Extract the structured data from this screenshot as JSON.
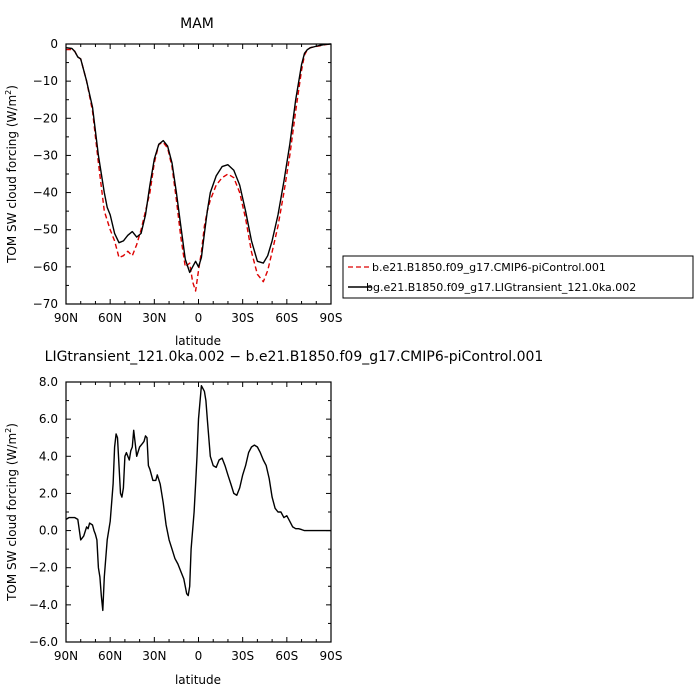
{
  "chart_data": [
    {
      "type": "line",
      "title": "MAM",
      "xlabel": "latitude",
      "ylabel_main": "TOM SW cloud forcing (W/m",
      "ylabel_sup": "2",
      "ylabel_close": ")",
      "xlim": [
        90,
        -90
      ],
      "ylim": [
        -70,
        0
      ],
      "xticks": [
        90,
        60,
        30,
        0,
        -30,
        -60,
        -90
      ],
      "xtick_labels": [
        "90N",
        "60N",
        "30N",
        "0",
        "30S",
        "60S",
        "90S"
      ],
      "yticks": [
        0,
        -10,
        -20,
        -30,
        -40,
        -50,
        -60,
        -70
      ],
      "ytick_labels": [
        "0",
        "−10",
        "−20",
        "−30",
        "−40",
        "−50",
        "−60",
        "−70"
      ],
      "legend": "right",
      "series": [
        {
          "name": "b.e21.B1850.f09_g17.CMIP6-piControl.001",
          "color": "#dd0000",
          "dash": "dashed",
          "x": [
            90,
            86,
            84,
            82,
            80,
            76,
            72,
            68,
            64,
            60,
            57,
            54,
            51,
            48,
            45,
            42,
            39,
            36,
            33,
            30,
            27,
            24,
            21,
            18,
            15,
            12,
            9,
            6,
            4,
            2,
            0,
            -2,
            -4,
            -6,
            -8,
            -12,
            -16,
            -20,
            -24,
            -28,
            -32,
            -36,
            -40,
            -44,
            -47,
            -50,
            -54,
            -58,
            -62,
            -66,
            -70,
            -72,
            -74,
            -76,
            -78,
            -82,
            -86,
            -90
          ],
          "y": [
            -1.5,
            -1.5,
            -2.0,
            -3.5,
            -4.0,
            -10.0,
            -18.0,
            -32.0,
            -45.0,
            -50.0,
            -53.0,
            -57.5,
            -57.0,
            -55.8,
            -57.0,
            -54.0,
            -50.0,
            -45.0,
            -40.0,
            -32.0,
            -27.0,
            -26.5,
            -28.0,
            -33.0,
            -42.0,
            -52.0,
            -60.0,
            -59.0,
            -64.0,
            -66.5,
            -61.0,
            -56.0,
            -49.0,
            -45.0,
            -42.0,
            -38.0,
            -36.0,
            -35.0,
            -36.0,
            -40.0,
            -47.0,
            -56.0,
            -62.0,
            -64.0,
            -61.0,
            -56.0,
            -49.0,
            -40.0,
            -30.0,
            -18.0,
            -7.0,
            -3.0,
            -1.5,
            -1.0,
            -0.8,
            -0.5,
            -0.2,
            0.0
          ]
        },
        {
          "name": "bg.e21.B1850.f09_g17.LIGtransient_121.0ka.002",
          "color": "#000000",
          "dash": "solid",
          "x": [
            90,
            86,
            84,
            82,
            80,
            76,
            72,
            68,
            64,
            62,
            60,
            57,
            54,
            51,
            48,
            45,
            42,
            39,
            36,
            33,
            30,
            27,
            24,
            21,
            18,
            15,
            12,
            9,
            6,
            4,
            2,
            0,
            -2,
            -4,
            -6,
            -8,
            -12,
            -16,
            -20,
            -24,
            -28,
            -32,
            -36,
            -40,
            -44,
            -47,
            -50,
            -54,
            -58,
            -62,
            -66,
            -70,
            -72,
            -74,
            -76,
            -78,
            -82,
            -86,
            -90
          ],
          "y": [
            -1.0,
            -1.2,
            -2.0,
            -3.5,
            -4.0,
            -10.0,
            -17.0,
            -30.0,
            -40.0,
            -44.0,
            -46.0,
            -51.0,
            -53.5,
            -53.0,
            -51.5,
            -50.5,
            -52.0,
            -51.0,
            -46.0,
            -38.0,
            -31.0,
            -27.0,
            -26.0,
            -27.5,
            -32.0,
            -40.0,
            -49.0,
            -58.0,
            -61.5,
            -60.0,
            -58.5,
            -60.0,
            -57.5,
            -51.0,
            -45.0,
            -40.0,
            -35.5,
            -33.0,
            -32.5,
            -34.0,
            -38.0,
            -45.0,
            -53.0,
            -58.5,
            -59.0,
            -57.0,
            -53.0,
            -46.0,
            -37.0,
            -27.0,
            -15.0,
            -5.5,
            -2.5,
            -1.5,
            -1.0,
            -0.8,
            -0.4,
            -0.1,
            0.0
          ]
        }
      ]
    },
    {
      "type": "line",
      "title": "LIGtransient_121.0ka.002 − b.e21.B1850.f09_g17.CMIP6-piControl.001",
      "xlabel": "latitude",
      "ylabel_main": "TOM SW cloud forcing (W/m",
      "ylabel_sup": "2",
      "ylabel_close": ")",
      "xlim": [
        90,
        -90
      ],
      "ylim": [
        -6,
        8
      ],
      "xticks": [
        90,
        60,
        30,
        0,
        -30,
        -60,
        -90
      ],
      "xtick_labels": [
        "90N",
        "60N",
        "30N",
        "0",
        "30S",
        "60S",
        "90S"
      ],
      "yticks": [
        8,
        6,
        4,
        2,
        0,
        -2,
        -4,
        -6
      ],
      "ytick_labels": [
        "8.0",
        "6.0",
        "4.0",
        "2.0",
        "0.0",
        "−2.0",
        "−4.0",
        "−6.0"
      ],
      "series": [
        {
          "color": "#000000",
          "dash": "solid",
          "x": [
            90,
            88,
            86,
            84,
            82,
            80,
            78,
            76,
            75,
            74,
            72,
            71,
            70,
            69,
            68,
            67,
            66,
            65,
            64,
            62,
            60,
            58,
            57,
            56,
            55,
            53,
            52,
            51,
            50,
            49,
            47,
            46,
            45,
            44,
            42,
            40,
            38,
            37,
            36,
            35,
            34,
            33,
            31,
            29,
            28,
            26,
            24,
            22,
            20,
            18,
            16,
            14,
            12,
            10,
            8,
            7,
            6,
            5,
            3,
            2,
            1,
            0,
            -2,
            -4,
            -5,
            -6,
            -8,
            -10,
            -12,
            -14,
            -16,
            -18,
            -20,
            -22,
            -24,
            -26,
            -28,
            -30,
            -32,
            -34,
            -36,
            -38,
            -40,
            -42,
            -44,
            -46,
            -48,
            -50,
            -52,
            -54,
            -56,
            -58,
            -60,
            -62,
            -64,
            -66,
            -68,
            -70,
            -72,
            -74,
            -76,
            -78,
            -82,
            -86,
            -90
          ],
          "y": [
            0.6,
            0.7,
            0.7,
            0.7,
            0.6,
            -0.5,
            -0.3,
            0.2,
            0.1,
            0.4,
            0.3,
            0.0,
            -0.2,
            -0.5,
            -2.0,
            -2.5,
            -3.5,
            -4.3,
            -2.5,
            -0.5,
            0.5,
            2.5,
            4.5,
            5.2,
            5.0,
            2.0,
            1.8,
            2.3,
            4.0,
            4.2,
            3.8,
            4.3,
            4.5,
            5.4,
            4.0,
            4.5,
            4.7,
            4.8,
            5.1,
            5.0,
            3.5,
            3.3,
            2.7,
            2.7,
            3.0,
            2.5,
            1.5,
            0.3,
            -0.5,
            -1.0,
            -1.5,
            -1.8,
            -2.2,
            -2.6,
            -3.4,
            -3.5,
            -3.0,
            -1.0,
            1.0,
            2.5,
            4.0,
            6.0,
            7.8,
            7.5,
            7.0,
            6.0,
            4.0,
            3.5,
            3.4,
            3.8,
            3.9,
            3.5,
            3.0,
            2.5,
            2.0,
            1.9,
            2.3,
            3.0,
            3.5,
            4.2,
            4.5,
            4.6,
            4.5,
            4.2,
            3.8,
            3.5,
            2.8,
            1.8,
            1.2,
            1.0,
            1.0,
            0.7,
            0.8,
            0.5,
            0.2,
            0.1,
            0.1,
            0.05,
            0.0,
            0.0,
            0.0,
            0.0,
            0.0,
            0.0,
            0.0
          ]
        }
      ]
    }
  ]
}
